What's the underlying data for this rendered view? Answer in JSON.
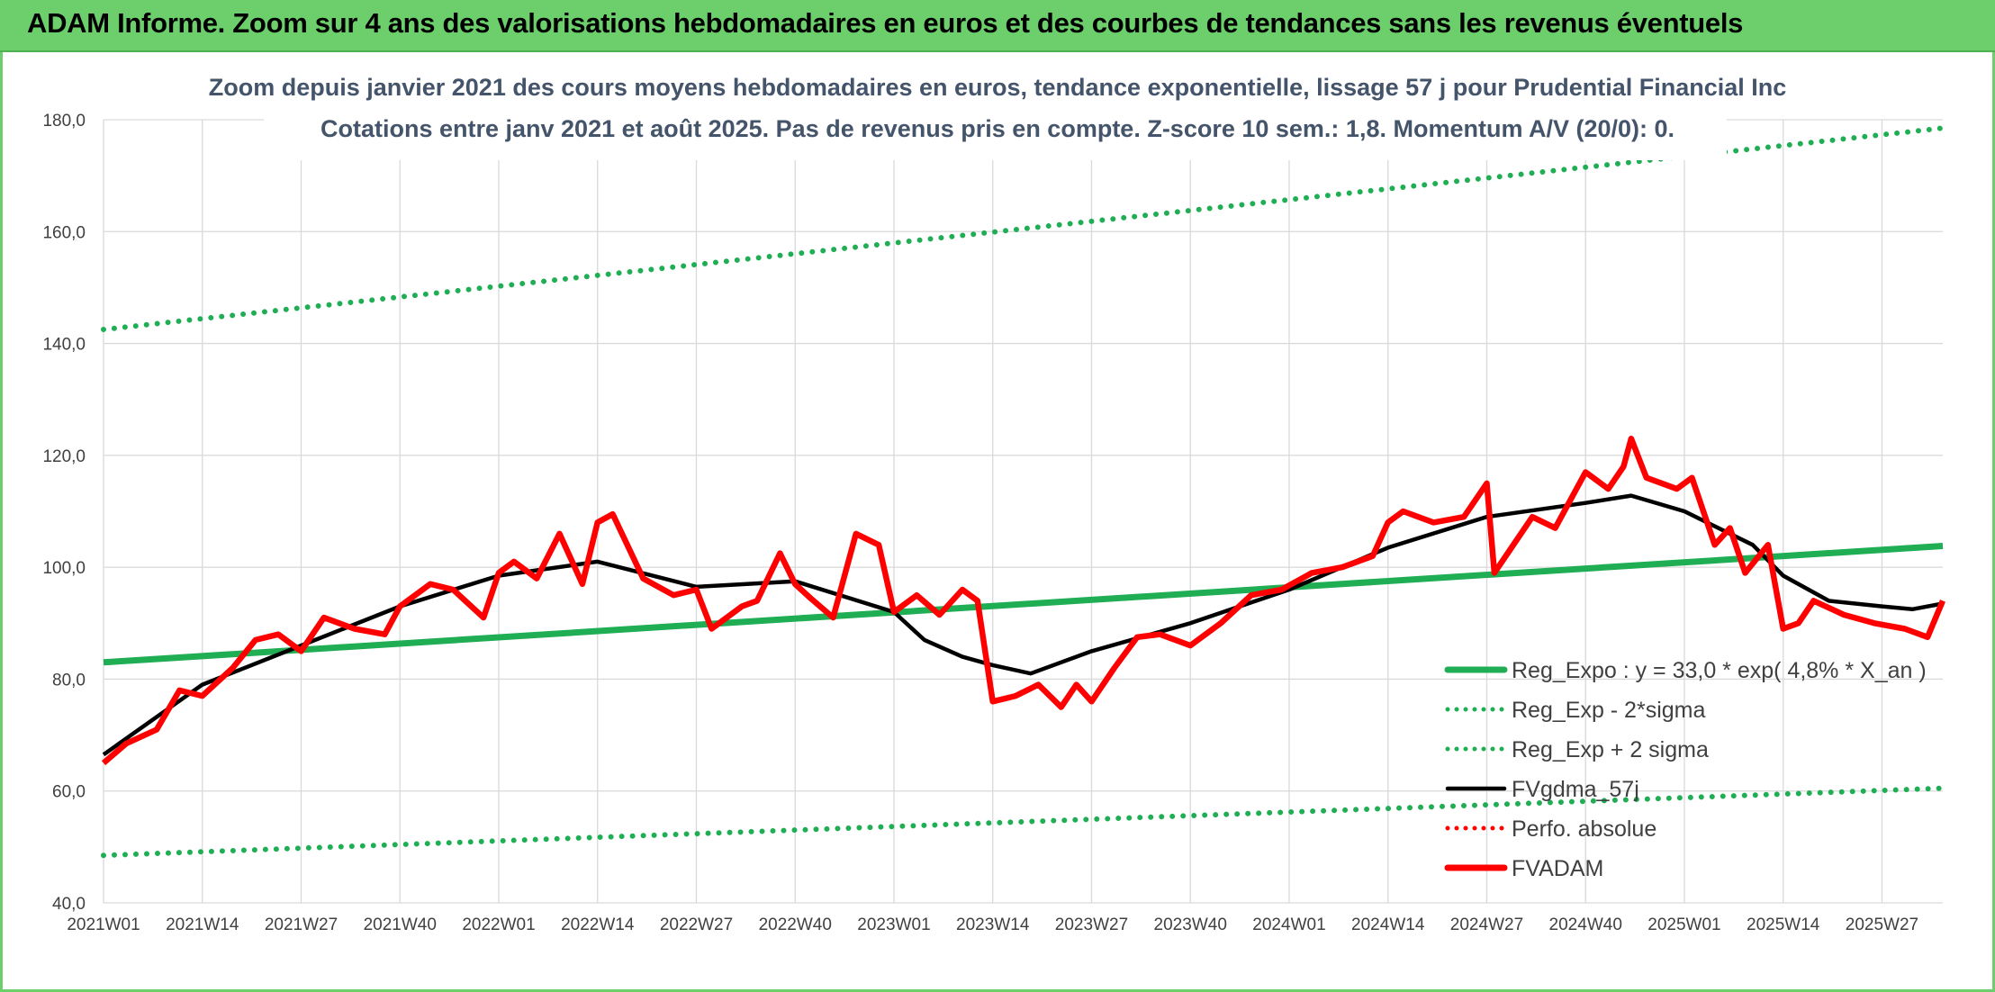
{
  "banner": {
    "title": "ADAM Informe. Zoom sur 4 ans des valorisations hebdomadaires en euros et des courbes de tendances sans les revenus éventuels"
  },
  "chart_data": {
    "type": "line",
    "title_line1": "Zoom depuis janvier 2021 des cours moyens hebdomadaires en euros, tendance exponentielle, lissage 57 j pour Prudential Financial Inc",
    "title_line2": "Cotations entre janv 2021 et août 2025. Pas de revenus pris en compte. Z-score 10 sem.: 1,8. Momentum A/V (20/0): 0.",
    "ylim": [
      40,
      180
    ],
    "y_ticks": [
      "40,0",
      "60,0",
      "80,0",
      "100,0",
      "120,0",
      "140,0",
      "160,0",
      "180,0"
    ],
    "x_ticks": [
      "2021W01",
      "2021W14",
      "2021W27",
      "2021W40",
      "2022W01",
      "2022W14",
      "2022W27",
      "2022W40",
      "2023W01",
      "2023W14",
      "2023W27",
      "2023W40",
      "2024W01",
      "2024W14",
      "2024W27",
      "2024W40",
      "2025W01",
      "2025W14",
      "2025W27"
    ],
    "grid": true,
    "legend_position": "bottom-right",
    "colors": {
      "regression": "#1fae54",
      "fvgdma": "#000000",
      "fvadam": "#ff0000",
      "perfo": "#ff0000"
    },
    "legend": [
      {
        "label": "Reg_Expo : y = 33,0 * exp( 4,8% *  X_an )",
        "color": "#1fae54",
        "style": "solid"
      },
      {
        "label": "Reg_Exp - 2*sigma",
        "color": "#1fae54",
        "style": "dotted"
      },
      {
        "label": "Reg_Exp + 2 sigma",
        "color": "#1fae54",
        "style": "dotted"
      },
      {
        "label": "FVgdma_57j",
        "color": "#000000",
        "style": "solid"
      },
      {
        "label": "Perfo. absolue",
        "color": "#ff0000",
        "style": "dotted"
      },
      {
        "label": "FVADAM",
        "color": "#ff0000",
        "style": "solid-thick"
      }
    ],
    "series": [
      {
        "name": "Reg_Expo : y = 33,0 * exp( 4,8% *  X_an )",
        "x": [
          "2021W01",
          "2025W35"
        ],
        "values": [
          83.0,
          103.8
        ]
      },
      {
        "name": "Reg_Exp - 2*sigma",
        "x": [
          "2021W01",
          "2025W35"
        ],
        "values": [
          48.5,
          60.5
        ]
      },
      {
        "name": "Reg_Exp + 2 sigma",
        "x": [
          "2021W01",
          "2025W35"
        ],
        "values": [
          142.5,
          178.5
        ]
      },
      {
        "name": "FVgdma_57j",
        "x": [
          "2021W01",
          "2021W14",
          "2021W27",
          "2021W40",
          "2022W01",
          "2022W14",
          "2022W27",
          "2022W40",
          "2023W01",
          "2023W05",
          "2023W10",
          "2023W14",
          "2023W19",
          "2023W27",
          "2023W40",
          "2024W01",
          "2024W14",
          "2024W27",
          "2024W40",
          "2024W46",
          "2025W01",
          "2025W10",
          "2025W14",
          "2025W20",
          "2025W27",
          "2025W31",
          "2025W35"
        ],
        "values": [
          66.5,
          79.0,
          86.0,
          93.0,
          98.5,
          101.0,
          96.5,
          97.5,
          92.0,
          87.0,
          84.0,
          82.5,
          81.0,
          85.0,
          90.0,
          96.0,
          103.5,
          109.0,
          111.5,
          112.8,
          110.0,
          104.0,
          98.5,
          94.0,
          93.0,
          92.5,
          93.5
        ]
      },
      {
        "name": "FVADAM",
        "x": [
          "2021W01",
          "2021W04",
          "2021W08",
          "2021W11",
          "2021W14",
          "2021W18",
          "2021W21",
          "2021W24",
          "2021W27",
          "2021W30",
          "2021W34",
          "2021W38",
          "2021W40",
          "2021W44",
          "2021W47",
          "2021W51",
          "2022W01",
          "2022W03",
          "2022W06",
          "2022W09",
          "2022W12",
          "2022W14",
          "2022W16",
          "2022W20",
          "2022W24",
          "2022W27",
          "2022W29",
          "2022W33",
          "2022W35",
          "2022W38",
          "2022W40",
          "2022W42",
          "2022W45",
          "2022W48",
          "2022W51",
          "2023W01",
          "2023W04",
          "2023W07",
          "2023W10",
          "2023W12",
          "2023W14",
          "2023W17",
          "2023W20",
          "2023W23",
          "2023W25",
          "2023W27",
          "2023W30",
          "2023W33",
          "2023W36",
          "2023W40",
          "2023W44",
          "2023W48",
          "2023W52",
          "2024W04",
          "2024W08",
          "2024W12",
          "2024W14",
          "2024W16",
          "2024W20",
          "2024W24",
          "2024W27",
          "2024W28",
          "2024W30",
          "2024W33",
          "2024W36",
          "2024W40",
          "2024W43",
          "2024W45",
          "2024W46",
          "2024W48",
          "2024W52",
          "2025W02",
          "2025W05",
          "2025W07",
          "2025W09",
          "2025W12",
          "2025W14",
          "2025W16",
          "2025W18",
          "2025W22",
          "2025W26",
          "2025W30",
          "2025W33",
          "2025W35"
        ],
        "values": [
          65.0,
          68.5,
          71.0,
          78.0,
          77.0,
          82.0,
          87.0,
          88.0,
          85.0,
          91.0,
          89.0,
          88.0,
          93.0,
          97.0,
          96.0,
          91.0,
          99.0,
          101.0,
          98.0,
          106.0,
          97.0,
          108.0,
          109.5,
          98.0,
          95.0,
          96.0,
          89.0,
          93.0,
          94.0,
          102.5,
          97.0,
          94.5,
          91.0,
          106.0,
          104.0,
          92.0,
          95.0,
          91.5,
          96.0,
          94.0,
          76.0,
          77.0,
          79.0,
          75.0,
          79.0,
          76.0,
          82.0,
          87.5,
          88.0,
          86.0,
          90.0,
          95.0,
          96.0,
          99.0,
          100.0,
          102.0,
          108.0,
          110.0,
          108.0,
          109.0,
          115.0,
          99.0,
          103.0,
          109.0,
          107.0,
          117.0,
          114.0,
          118.0,
          123.0,
          116.0,
          114.0,
          116.0,
          104.0,
          107.0,
          99.0,
          104.0,
          89.0,
          90.0,
          94.0,
          91.5,
          90.0,
          89.0,
          87.5,
          94.0
        ]
      }
    ]
  }
}
